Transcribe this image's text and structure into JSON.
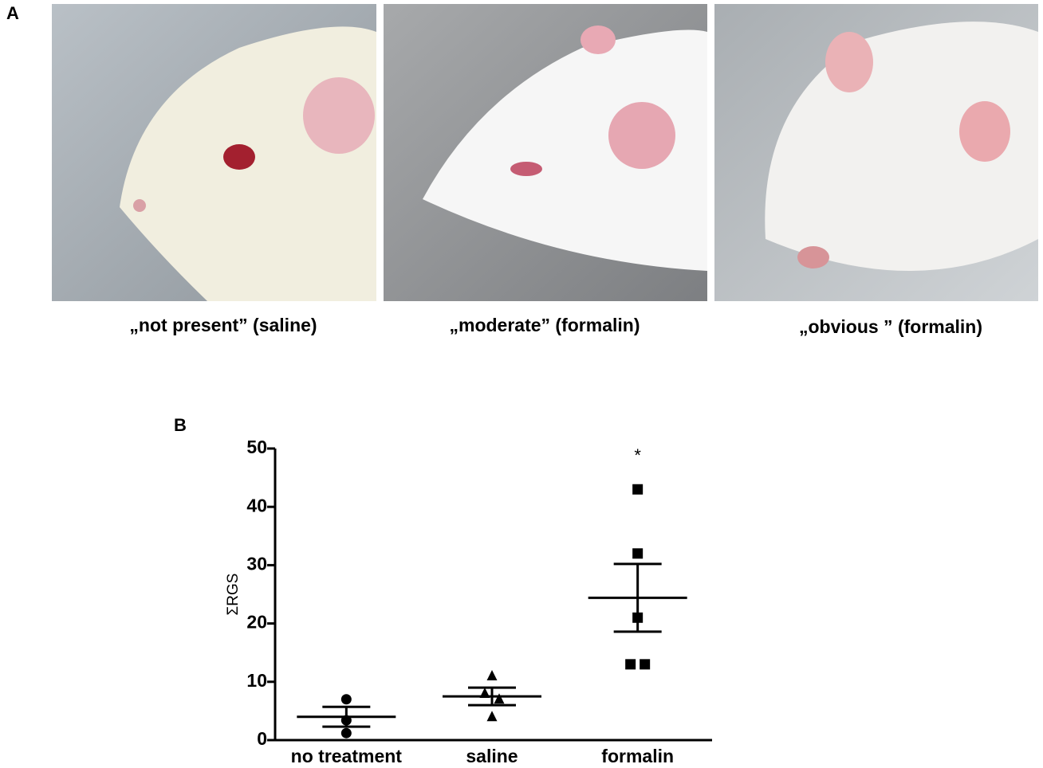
{
  "figure": {
    "panel_a": {
      "label": "A",
      "captions": [
        "„not present”  (saline)",
        "„moderate” (formalin)",
        "„obvious ” (formalin)"
      ]
    }
  },
  "chart_data": {
    "type": "scatter",
    "panel_label": "B",
    "y_label": "ΣRGS",
    "categories": [
      "no treatment",
      "saline",
      "formalin"
    ],
    "points": [
      [
        7,
        3.4,
        1.2
      ],
      [
        11,
        8,
        7,
        4
      ],
      [
        43,
        32,
        21,
        13,
        13
      ]
    ],
    "markers": [
      "circle",
      "triangle",
      "square"
    ],
    "mean": [
      4,
      7.5,
      24.4
    ],
    "sem": [
      1.7,
      1.5,
      5.8
    ],
    "color": "#000000",
    "annotations": [
      {
        "text": "*",
        "category_index": 2
      }
    ],
    "ylim": [
      0,
      50
    ],
    "yticks": [
      0,
      10,
      20,
      30,
      40,
      50
    ]
  }
}
